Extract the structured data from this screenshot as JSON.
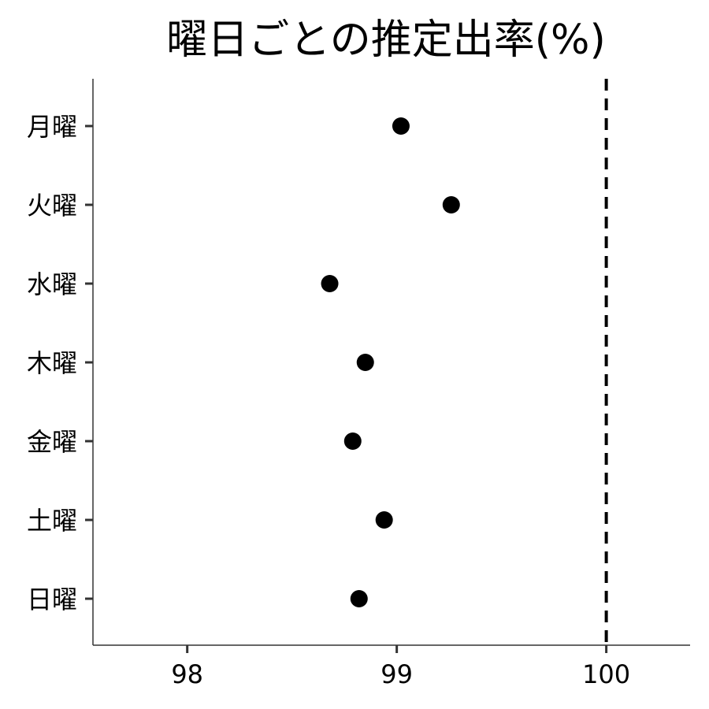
{
  "chart_data": {
    "type": "scatter",
    "title": "曜日ごとの推定出率(%)",
    "xlabel": "",
    "ylabel": "",
    "categories": [
      "月曜",
      "火曜",
      "水曜",
      "木曜",
      "金曜",
      "土曜",
      "日曜"
    ],
    "values": [
      99.02,
      99.26,
      98.68,
      98.85,
      98.79,
      98.94,
      98.82
    ],
    "xlim": [
      97.55,
      100.4
    ],
    "xticks": [
      98,
      99,
      100
    ],
    "xtick_labels": [
      "98",
      "99",
      "100"
    ],
    "reference_line": {
      "x": 100,
      "style": "dashed"
    },
    "grid": false,
    "legend": "none",
    "colors": {
      "marker": "#000000",
      "axis": "#333333",
      "reference_line": "#000000"
    }
  }
}
